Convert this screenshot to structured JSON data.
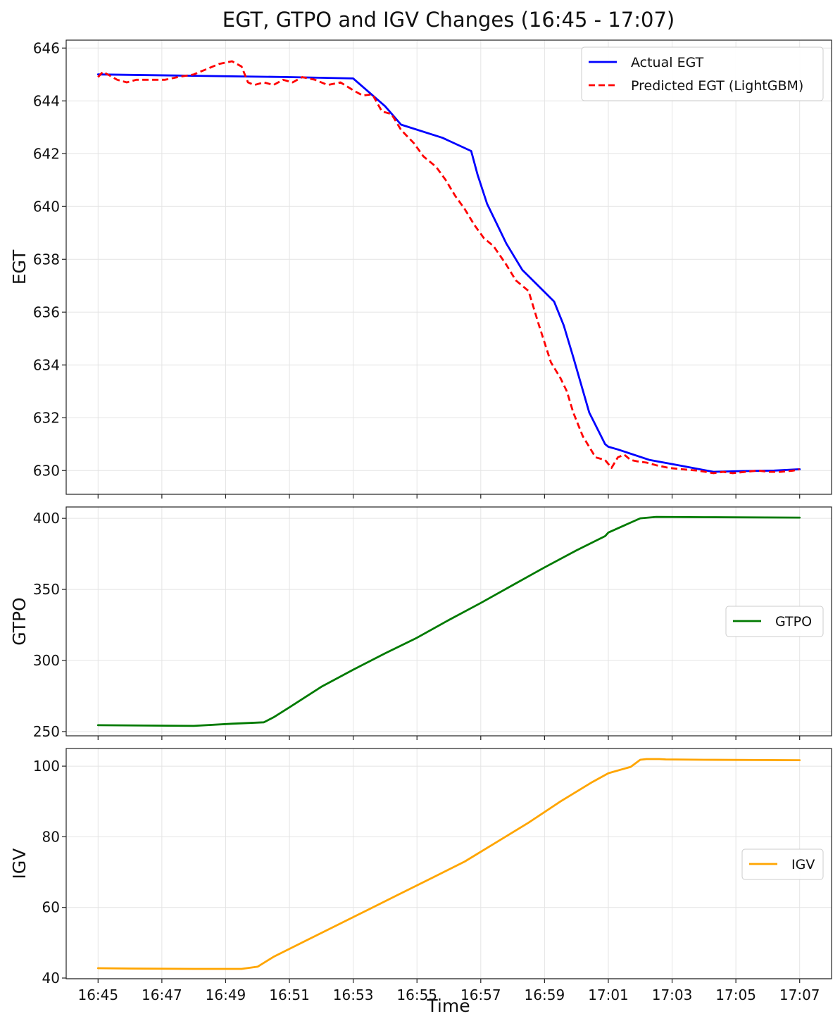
{
  "chart_data": {
    "type": "line",
    "title": "EGT, GTPO and IGV Changes (16:45 - 17:07)",
    "xlabel": "Time",
    "x_ticks": [
      "16:45",
      "16:47",
      "16:49",
      "16:51",
      "16:53",
      "16:55",
      "16:57",
      "16:59",
      "17:01",
      "17:03",
      "17:05",
      "17:07"
    ],
    "x_range_minutes": [
      -1.0,
      23.0
    ],
    "grid": true,
    "panels": [
      {
        "name": "egt-panel",
        "ylabel": "EGT",
        "ylim": [
          629.1,
          646.3
        ],
        "yticks": [
          630,
          632,
          634,
          636,
          638,
          640,
          642,
          644,
          646
        ],
        "show_x_ticklabels": false,
        "legend": "top-right",
        "series": [
          {
            "name": "Actual EGT",
            "color": "#0000ff",
            "style": "solid",
            "x": [
              0,
              3,
              6,
              8,
              9,
              9.5,
              10.8,
              11.7,
              11.9,
              12.2,
              12.6,
              12.8,
              13.3,
              14.3,
              14.6,
              14.9,
              15.4,
              15.9,
              16.0,
              16.3,
              17.3,
              18.2,
              19.3,
              20.2,
              21.2,
              22.0
            ],
            "y": [
              645.0,
              644.95,
              644.9,
              644.85,
              643.8,
              643.1,
              642.6,
              642.1,
              641.2,
              640.1,
              639.1,
              638.6,
              637.6,
              636.4,
              635.5,
              634.3,
              632.2,
              631.0,
              630.9,
              630.8,
              630.4,
              630.2,
              629.95,
              629.98,
              630.0,
              630.05
            ]
          },
          {
            "name": "Predicted EGT (LightGBM)",
            "color": "#ff0000",
            "style": "dashed",
            "x": [
              0,
              0.15,
              0.3,
              0.6,
              0.9,
              1.2,
              1.5,
              2.1,
              2.5,
              3.0,
              3.4,
              3.8,
              4.2,
              4.5,
              4.7,
              4.9,
              5.2,
              5.5,
              5.8,
              6.1,
              6.4,
              6.8,
              7.2,
              7.6,
              8.0,
              8.3,
              8.6,
              8.9,
              9.2,
              9.5,
              9.9,
              10.2,
              10.6,
              10.9,
              11.2,
              11.5,
              11.8,
              12.1,
              12.4,
              12.8,
              13.1,
              13.5,
              13.8,
              14.2,
              14.5,
              14.7,
              14.9,
              15.2,
              15.6,
              15.9,
              16.1,
              16.3,
              16.5,
              16.7,
              16.9,
              17.2,
              17.5,
              17.9,
              18.3,
              18.8,
              19.3,
              19.6,
              19.9,
              20.3,
              20.7,
              21.0,
              21.4,
              21.8,
              22.0
            ],
            "y": [
              644.9,
              645.1,
              645.0,
              644.8,
              644.7,
              644.8,
              644.8,
              644.8,
              644.9,
              645.0,
              645.2,
              645.4,
              645.5,
              645.3,
              644.7,
              644.6,
              644.7,
              644.6,
              644.8,
              644.7,
              644.9,
              644.8,
              644.6,
              644.7,
              644.4,
              644.2,
              644.25,
              643.6,
              643.5,
              642.9,
              642.4,
              641.9,
              641.5,
              641.0,
              640.4,
              639.9,
              639.3,
              638.8,
              638.5,
              637.8,
              637.2,
              636.8,
              635.6,
              634.1,
              633.5,
              633.0,
              632.2,
              631.3,
              630.5,
              630.4,
              630.1,
              630.5,
              630.6,
              630.4,
              630.35,
              630.3,
              630.2,
              630.1,
              630.05,
              630.0,
              629.9,
              629.95,
              629.9,
              629.95,
              630.0,
              629.95,
              629.95,
              630.0,
              630.05
            ]
          }
        ]
      },
      {
        "name": "gtpo-panel",
        "ylabel": "GTPO",
        "ylim": [
          247,
          408
        ],
        "yticks": [
          250,
          300,
          350,
          400
        ],
        "show_x_ticklabels": false,
        "legend": "center-right",
        "series": [
          {
            "name": "GTPO",
            "color": "#007a00",
            "style": "solid",
            "x": [
              0,
              3,
              4.2,
              5.2,
              5.5,
              6.0,
              7.0,
              8.0,
              9.0,
              10.0,
              11.0,
              12.0,
              13.0,
              14.0,
              15.0,
              15.9,
              16.0,
              17.0,
              17.5,
              19.0,
              22.0
            ],
            "y": [
              254.5,
              254.0,
              255.5,
              256.5,
              260.0,
              267.0,
              281.5,
              293.5,
              305.0,
              316.0,
              328.5,
              340.5,
              353.0,
              365.5,
              377.5,
              387.5,
              390.0,
              400.0,
              401.0,
              400.8,
              400.5
            ]
          }
        ]
      },
      {
        "name": "igv-panel",
        "ylabel": "IGV",
        "ylim": [
          39.8,
          105
        ],
        "yticks": [
          40,
          60,
          80,
          100
        ],
        "show_x_ticklabels": true,
        "legend": "center-right",
        "series": [
          {
            "name": "IGV",
            "color": "#ffa500",
            "style": "solid",
            "x": [
              0,
              1,
              3,
              4.5,
              5.0,
              5.5,
              6.5,
              7.5,
              8.5,
              9.5,
              10.5,
              11.5,
              12.5,
              13.5,
              14.5,
              15.5,
              16.0,
              16.7,
              17.0,
              17.2,
              17.4,
              17.6,
              17.8,
              19.0,
              22.0
            ],
            "y": [
              42.8,
              42.7,
              42.6,
              42.6,
              43.2,
              46.0,
              50.5,
              55.0,
              59.5,
              64.0,
              68.5,
              73.0,
              78.5,
              84.0,
              90.0,
              95.5,
              98.0,
              99.8,
              101.8,
              102.0,
              102.0,
              102.0,
              101.9,
              101.8,
              101.7
            ]
          }
        ]
      }
    ]
  }
}
